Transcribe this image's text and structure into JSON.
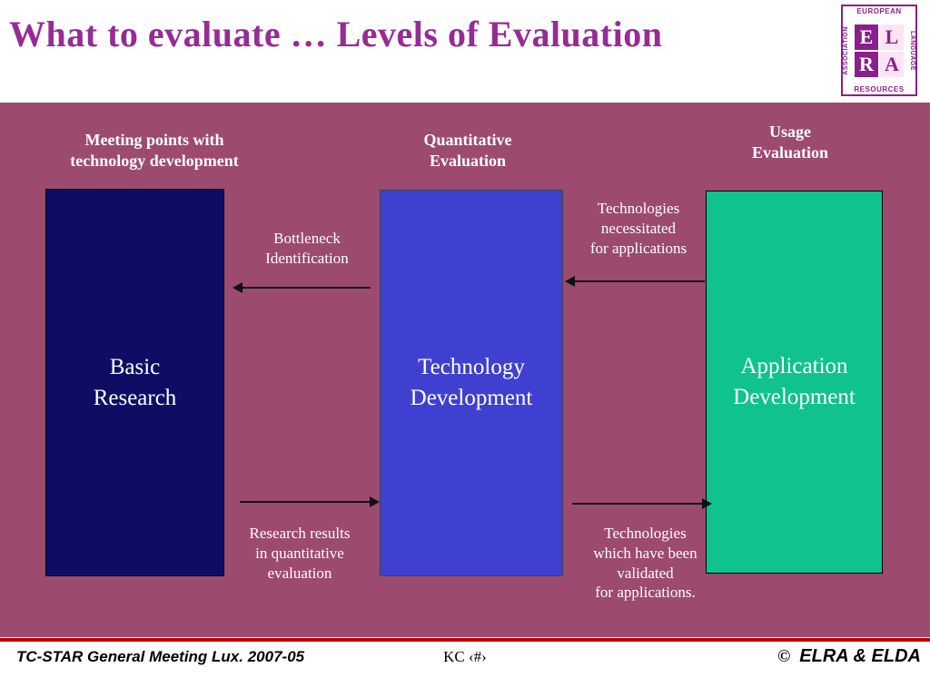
{
  "colors": {
    "title": "#962b96",
    "body_bg": "#9c4a70",
    "box_basic": "#0d0d63",
    "box_technology": "#4040d0",
    "box_application": "#0fc28e",
    "footer_line": "#bf0000",
    "logo_purple": "#8b1f8b"
  },
  "header": {
    "title": "What to evaluate … Levels of Evaluation"
  },
  "logo": {
    "top": "EUROPEAN",
    "right": "LANGUAGE",
    "bottom": "RESOURCES",
    "left": "ASSOCIATION",
    "letters": {
      "e": "E",
      "l": "L",
      "r": "R",
      "a": "A"
    }
  },
  "diagram": {
    "headers": {
      "left": "Meeting points with\ntechnology development",
      "center": "Quantitative\nEvaluation",
      "right": "Usage\nEvaluation"
    },
    "boxes": {
      "basic": "Basic\nResearch",
      "technology": "Technology\nDevelopment",
      "application": "Application\nDevelopment"
    },
    "arrow_labels": {
      "bottleneck": "Bottleneck\nIdentification",
      "necessitated": "Technologies\nnecessitated\nfor applications",
      "research_results": "Research results\nin quantitative\nevaluation",
      "validated": "Technologies\nwhich have been\nvalidated\nfor applications."
    }
  },
  "footer": {
    "left": "TC-STAR General Meeting Lux. 2007-05",
    "center": "KC ‹#›",
    "copyright": "©",
    "right": "ELRA & ELDA"
  }
}
